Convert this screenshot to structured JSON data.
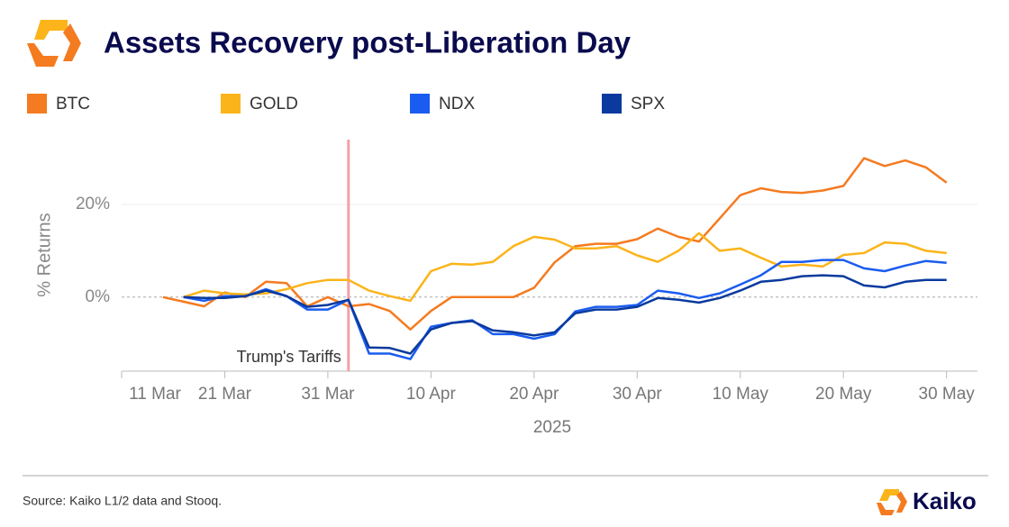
{
  "chart_data": {
    "type": "line",
    "title": "Assets Recovery post-Liberation Day",
    "ylabel": "% Returns",
    "xlabel": "2025",
    "source": "Source: Kaiko L1/2 data and Stooq.",
    "brand": "Kaiko",
    "x": [
      "2025-03-15",
      "2025-03-17",
      "2025-03-19",
      "2025-03-21",
      "2025-03-23",
      "2025-03-25",
      "2025-03-27",
      "2025-03-29",
      "2025-03-31",
      "2025-04-02",
      "2025-04-04",
      "2025-04-06",
      "2025-04-08",
      "2025-04-10",
      "2025-04-12",
      "2025-04-14",
      "2025-04-16",
      "2025-04-18",
      "2025-04-20",
      "2025-04-22",
      "2025-04-24",
      "2025-04-26",
      "2025-04-28",
      "2025-04-30",
      "2025-05-02",
      "2025-05-04",
      "2025-05-06",
      "2025-05-08",
      "2025-05-10",
      "2025-05-12",
      "2025-05-14",
      "2025-05-16",
      "2025-05-18",
      "2025-05-20",
      "2025-05-22",
      "2025-05-24",
      "2025-05-26",
      "2025-05-28",
      "2025-05-30"
    ],
    "series": [
      {
        "name": "BTC",
        "color": "#f47b20",
        "values": [
          0,
          -1,
          -2,
          1,
          0,
          3.3,
          3,
          -2,
          0,
          -2,
          -1.5,
          -3,
          -7,
          -3,
          0,
          0,
          0,
          0,
          2,
          7.5,
          11,
          11.5,
          11.5,
          12.5,
          14.8,
          13,
          12,
          17,
          22,
          23.5,
          22.7,
          22.5,
          23,
          24,
          30,
          28.3,
          29.5,
          28,
          24.7
        ]
      },
      {
        "name": "GOLD",
        "color": "#fbb41a",
        "values": [
          null,
          0,
          1.4,
          0.8,
          0.6,
          0.8,
          1.7,
          3,
          3.7,
          3.7,
          1.4,
          0.2,
          -0.8,
          5.6,
          7.2,
          7,
          7.6,
          11,
          13,
          12.4,
          10.5,
          10.5,
          11,
          9,
          7.6,
          10,
          13.8,
          10,
          10.5,
          8.5,
          6.6,
          7,
          6.6,
          9.1,
          9.5,
          11.8,
          11.5,
          10,
          9.5
        ]
      },
      {
        "name": "NDX",
        "color": "#1a5cf0",
        "values": [
          null,
          0,
          -0.8,
          0.2,
          0.2,
          1.7,
          0.2,
          -2.7,
          -2.7,
          -0.6,
          -12.2,
          -12.2,
          -13.4,
          -6.4,
          -5.6,
          -5,
          -8,
          -8,
          -9,
          -8,
          -3.1,
          -2.1,
          -2.1,
          -1.7,
          1.4,
          0.8,
          -0.2,
          0.8,
          2.7,
          4.7,
          7.6,
          7.6,
          8,
          8,
          6.2,
          5.6,
          6.8,
          7.8,
          7.4
        ]
      },
      {
        "name": "SPX",
        "color": "#0a3a9e",
        "values": [
          null,
          0,
          -0.2,
          -0.2,
          0.2,
          1.4,
          0.2,
          -2.1,
          -1.7,
          -0.6,
          -10.9,
          -11,
          -12.2,
          -7,
          -5.6,
          -5.2,
          -7.2,
          -7.6,
          -8.3,
          -7.6,
          -3.5,
          -2.7,
          -2.7,
          -2.1,
          -0.2,
          -0.6,
          -1.2,
          -0.2,
          1.4,
          3.3,
          3.7,
          4.5,
          4.7,
          4.5,
          2.5,
          2.1,
          3.3,
          3.7,
          3.7
        ]
      }
    ],
    "xlim": [
      "2025-03-11",
      "2025-06-02"
    ],
    "xticks": [
      {
        "value": "2025-03-11",
        "label": "11 Mar"
      },
      {
        "value": "2025-03-21",
        "label": "21 Mar"
      },
      {
        "value": "2025-03-31",
        "label": "31 Mar"
      },
      {
        "value": "2025-04-10",
        "label": "10 Apr"
      },
      {
        "value": "2025-04-20",
        "label": "20 Apr"
      },
      {
        "value": "2025-04-30",
        "label": "30 Apr"
      },
      {
        "value": "2025-05-10",
        "label": "10 May"
      },
      {
        "value": "2025-05-20",
        "label": "20 May"
      },
      {
        "value": "2025-05-30",
        "label": "30 May"
      }
    ],
    "ylim": [
      -16,
      34
    ],
    "yticks": [
      {
        "value": 0,
        "label": "0%"
      },
      {
        "value": 20,
        "label": "20%"
      }
    ],
    "grid": true,
    "annotations": [
      {
        "text": "Trump's Tariffs",
        "x": "2025-04-02",
        "color": "#f4a0a8"
      }
    ]
  }
}
